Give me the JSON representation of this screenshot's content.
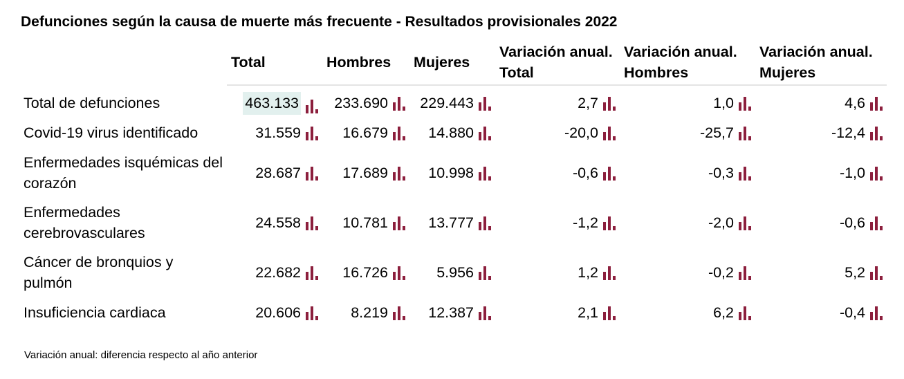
{
  "title": "Defunciones según la causa de muerte más frecuente - Resultados provisionales 2022",
  "columns": [
    "Total",
    "Hombres",
    "Mujeres",
    "Variación anual. Total",
    "Variación anual. Hombres",
    "Variación anual. Mujeres"
  ],
  "rows": [
    {
      "label": "Total de defunciones",
      "values": [
        "463.133",
        "233.690",
        "229.443",
        "2,7",
        "1,0",
        "4,6"
      ]
    },
    {
      "label": "Covid-19 virus identificado",
      "values": [
        "31.559",
        "16.679",
        "14.880",
        "-20,0",
        "-25,7",
        "-12,4"
      ]
    },
    {
      "label": "Enfermedades isquémicas del corazón",
      "values": [
        "28.687",
        "17.689",
        "10.998",
        "-0,6",
        "-0,3",
        "-1,0"
      ]
    },
    {
      "label": "Enfermedades cerebrovasculares",
      "values": [
        "24.558",
        "10.781",
        "13.777",
        "-1,2",
        "-2,0",
        "-0,6"
      ]
    },
    {
      "label": "Cáncer de bronquios y pulmón",
      "values": [
        "22.682",
        "16.726",
        "5.956",
        "1,2",
        "-0,2",
        "5,2"
      ]
    },
    {
      "label": "Insuficiencia cardiaca",
      "values": [
        "20.606",
        "8.219",
        "12.387",
        "2,1",
        "6,2",
        "-0,4"
      ]
    }
  ],
  "footnote": "Variación anual: diferencia respecto al año anterior",
  "colors": {
    "bar_icon": "#8c1f3d",
    "highlight": "#e2f0ee",
    "header_rule": "#e4e4e4"
  },
  "icons": {
    "cell_chart": "bar-chart-icon"
  }
}
